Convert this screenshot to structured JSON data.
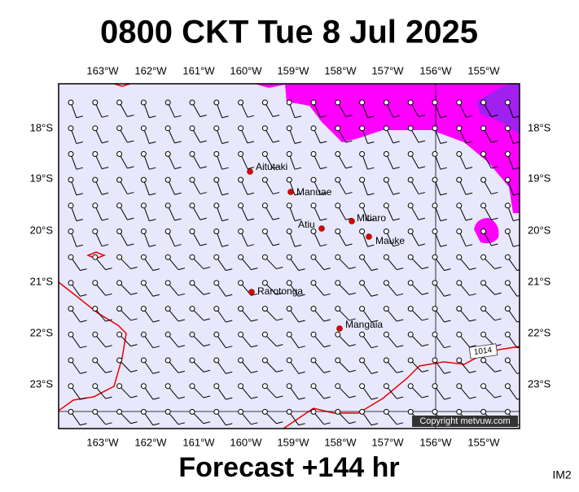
{
  "title": "0800 CKT Tue 8 Jul 2025",
  "footer": "Forecast +144 hr",
  "corner_label": "IM2",
  "map": {
    "lon_labels": [
      "163°W",
      "162°W",
      "161°W",
      "160°W",
      "159°W",
      "158°W",
      "157°W",
      "156°W",
      "155°W"
    ],
    "lat_labels": [
      "18°S",
      "19°S",
      "20°S",
      "21°S",
      "22°S",
      "23°S"
    ],
    "places": [
      "Aitutaki",
      "Manuae",
      "Atiu",
      "Mitiaro",
      "Mauke",
      "Rarotonga",
      "Mangaia"
    ],
    "isobar_label": "1014",
    "copyright": "Copyright metvuw.com"
  }
}
